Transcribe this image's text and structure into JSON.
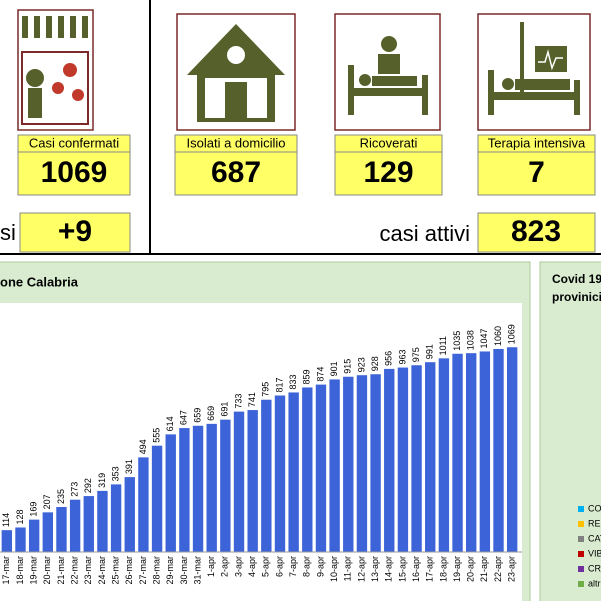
{
  "cards": [
    {
      "label": "Casi confermati",
      "value": "1069"
    },
    {
      "label": "Isolati a domicilio",
      "value": "687"
    },
    {
      "label": "Ricoverati",
      "value": "129"
    },
    {
      "label": "Terapia intensiva",
      "value": "7"
    }
  ],
  "new_cases": {
    "label": "si",
    "value": "+9"
  },
  "active_cases": {
    "label": "casi attivi",
    "value": "823"
  },
  "chart_data": {
    "type": "bar",
    "title": "one Calabria",
    "categories": [
      "17-mar",
      "18-mar",
      "19-mar",
      "20-mar",
      "21-mar",
      "22-mar",
      "23-mar",
      "24-mar",
      "25-mar",
      "26-mar",
      "27-mar",
      "28-mar",
      "29-mar",
      "30-mar",
      "31-mar",
      "1-apr",
      "2-apr",
      "3-apr",
      "4-apr",
      "5-apr",
      "6-apr",
      "7-apr",
      "8-apr",
      "9-apr",
      "10-apr",
      "11-apr",
      "12-apr",
      "13-apr",
      "14-apr",
      "15-apr",
      "16-apr",
      "17-apr",
      "18-apr",
      "19-apr",
      "20-apr",
      "21-apr",
      "22-apr",
      "23-apr"
    ],
    "values": [
      114,
      128,
      169,
      207,
      235,
      273,
      292,
      319,
      353,
      391,
      494,
      555,
      614,
      647,
      659,
      669,
      691,
      733,
      741,
      795,
      817,
      833,
      859,
      874,
      901,
      915,
      923,
      928,
      956,
      963,
      975,
      991,
      1011,
      1035,
      1038,
      1047,
      1060,
      1069
    ],
    "color": "#3c63d8",
    "ylim": [
      0,
      1300
    ]
  },
  "side_panel": {
    "title": [
      "Covid 19",
      "provinici"
    ],
    "legend": [
      {
        "name": "CO",
        "color": "#00b0f0"
      },
      {
        "name": "REG",
        "color": "#ffc000"
      },
      {
        "name": "CAT",
        "color": "#808080"
      },
      {
        "name": "VIB",
        "color": "#c00000"
      },
      {
        "name": "CRO",
        "color": "#7030a0"
      },
      {
        "name": "altr",
        "color": "#70ad47"
      }
    ]
  }
}
